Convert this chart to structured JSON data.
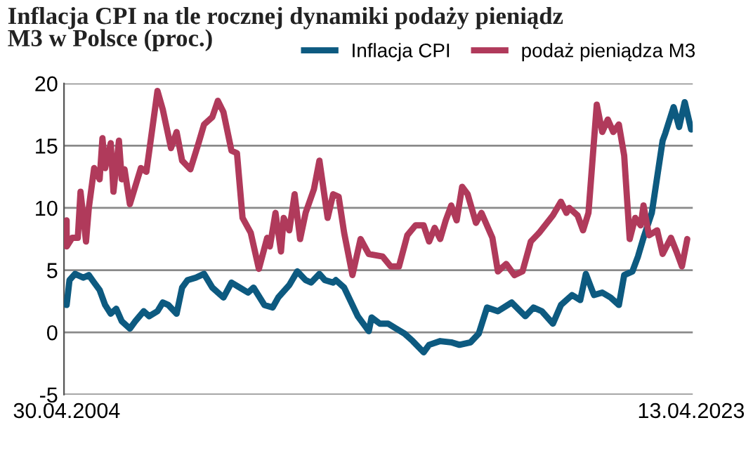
{
  "chart_data": {
    "type": "line",
    "title": "Inflacja CPI na tle rocznej dynamiki podaży pieniądz\nM3 w Polsce (proc.)",
    "xlim": [
      "2004-04-01",
      "2023-05-01"
    ],
    "xticks": [
      {
        "value": "2004-04-30",
        "label": "30.04.2004"
      },
      {
        "value": "2023-04-13",
        "label": "13.04.2023"
      }
    ],
    "ylim": [
      -5,
      20
    ],
    "yticks": [
      -5,
      0,
      5,
      10,
      15,
      20
    ],
    "grid": "y",
    "legend": "top right",
    "line_style": "solid",
    "marker": "none",
    "series": [
      {
        "name": "Inflacja CPI",
        "color": "#0d5a80",
        "x": [
          "2004-04-30",
          "2004-06",
          "2004-08",
          "2004-11",
          "2005-01",
          "2005-03",
          "2005-05",
          "2005-07",
          "2005-09",
          "2005-11",
          "2006-01",
          "2006-04",
          "2006-06",
          "2006-09",
          "2006-11",
          "2007-02",
          "2007-04",
          "2007-06",
          "2007-09",
          "2007-11",
          "2008-01",
          "2008-04",
          "2008-07",
          "2008-10",
          "2009-02",
          "2009-05",
          "2009-08",
          "2009-11",
          "2010-01",
          "2010-05",
          "2010-08",
          "2010-10",
          "2011-02",
          "2011-05",
          "2011-08",
          "2011-10",
          "2012-01",
          "2012-03",
          "2012-06",
          "2012-07",
          "2012-10",
          "2013-03",
          "2013-07",
          "2013-08",
          "2013-11",
          "2014-02",
          "2014-05",
          "2014-08",
          "2014-11",
          "2015-03",
          "2015-05",
          "2015-09",
          "2016-01",
          "2016-04",
          "2016-08",
          "2016-11",
          "2017-02",
          "2017-06",
          "2017-11",
          "2018-04",
          "2018-07",
          "2018-10",
          "2019-02",
          "2019-05",
          "2019-09",
          "2019-12",
          "2020-02",
          "2020-05",
          "2020-08",
          "2020-11",
          "2021-02",
          "2021-04",
          "2021-07",
          "2021-09",
          "2021-11",
          "2022-02",
          "2022-06",
          "2022-07",
          "2022-10",
          "2022-12",
          "2023-02",
          "2023-04-13"
        ],
        "values": [
          2.2,
          4.2,
          4.7,
          4.4,
          4.6,
          4.0,
          3.4,
          2.2,
          1.5,
          1.9,
          0.9,
          0.3,
          0.9,
          1.7,
          1.3,
          1.7,
          2.4,
          2.2,
          1.5,
          3.6,
          4.2,
          4.4,
          4.7,
          3.6,
          2.8,
          4.0,
          3.6,
          3.2,
          3.6,
          2.2,
          2.0,
          2.8,
          3.8,
          4.9,
          4.2,
          4.0,
          4.7,
          4.2,
          4.0,
          4.2,
          3.6,
          1.3,
          0.1,
          1.2,
          0.7,
          0.7,
          0.3,
          -0.1,
          -0.7,
          -1.6,
          -1.0,
          -0.7,
          -0.8,
          -1.0,
          -0.8,
          -0.1,
          2.0,
          1.7,
          2.4,
          1.3,
          2.0,
          1.7,
          0.7,
          2.2,
          3.0,
          2.6,
          4.7,
          3.0,
          3.2,
          2.8,
          2.2,
          4.6,
          4.9,
          6.1,
          7.6,
          9.6,
          15.4,
          16.0,
          18.1,
          16.5,
          18.5,
          16.3
        ]
      },
      {
        "name": "podaż pieniądza M3",
        "color": "#b03a5b",
        "x": [
          "2004-04-30",
          "2004-05",
          "2004-07",
          "2004-09",
          "2004-10",
          "2004-12",
          "2005-01",
          "2005-03",
          "2005-05",
          "2005-06",
          "2005-07",
          "2005-09",
          "2005-10",
          "2005-12",
          "2006-01",
          "2006-02",
          "2006-04",
          "2006-08",
          "2006-10",
          "2007-02",
          "2007-04",
          "2007-07",
          "2007-09",
          "2007-11",
          "2008-02",
          "2008-05",
          "2008-07",
          "2008-10",
          "2008-12",
          "2009-02",
          "2009-05",
          "2009-07",
          "2009-09",
          "2009-12",
          "2010-03",
          "2010-06",
          "2010-07",
          "2010-09",
          "2010-11",
          "2010-12",
          "2011-02",
          "2011-04",
          "2011-06",
          "2011-08",
          "2011-11",
          "2012-01",
          "2012-04",
          "2012-06",
          "2012-08",
          "2012-10",
          "2013-01",
          "2013-04",
          "2013-07",
          "2013-12",
          "2014-03",
          "2014-06",
          "2014-09",
          "2014-12",
          "2015-03",
          "2015-05",
          "2015-07",
          "2015-09",
          "2015-11",
          "2016-01",
          "2016-03",
          "2016-05",
          "2016-07",
          "2016-10",
          "2016-12",
          "2017-04",
          "2017-06",
          "2017-09",
          "2017-12",
          "2018-03",
          "2018-06",
          "2018-09",
          "2019-02",
          "2019-05",
          "2019-07",
          "2019-08",
          "2019-11",
          "2020-01",
          "2020-03",
          "2020-06",
          "2020-08",
          "2020-10",
          "2020-12",
          "2021-02",
          "2021-04",
          "2021-06",
          "2021-08",
          "2021-10",
          "2021-11",
          "2022-01",
          "2022-04",
          "2022-06",
          "2022-09",
          "2022-11",
          "2023-01",
          "2023-03"
        ],
        "values": [
          9.0,
          6.9,
          7.6,
          7.6,
          11.3,
          7.3,
          10.0,
          13.2,
          12.3,
          15.6,
          13.2,
          15.2,
          11.3,
          15.4,
          12.3,
          13.1,
          10.3,
          13.2,
          12.9,
          19.4,
          17.9,
          14.8,
          16.1,
          13.8,
          13.1,
          15.2,
          16.7,
          17.3,
          18.6,
          17.7,
          14.6,
          14.4,
          9.2,
          8.0,
          5.1,
          7.6,
          6.9,
          9.6,
          6.5,
          9.2,
          8.2,
          11.1,
          7.5,
          9.6,
          11.5,
          13.8,
          9.2,
          11.1,
          10.9,
          8.0,
          4.6,
          7.5,
          6.3,
          6.1,
          5.3,
          5.3,
          7.8,
          8.6,
          8.6,
          7.3,
          8.4,
          7.5,
          9.0,
          10.2,
          9.0,
          11.7,
          11.1,
          8.8,
          9.6,
          7.6,
          4.9,
          5.5,
          4.6,
          4.9,
          7.3,
          8.0,
          9.4,
          10.5,
          9.6,
          10.0,
          9.4,
          8.2,
          9.6,
          18.3,
          16.1,
          17.1,
          16.1,
          16.7,
          14.2,
          7.5,
          9.2,
          8.6,
          10.2,
          7.8,
          8.2,
          6.3,
          7.6,
          6.5,
          5.3,
          7.5
        ]
      }
    ]
  }
}
